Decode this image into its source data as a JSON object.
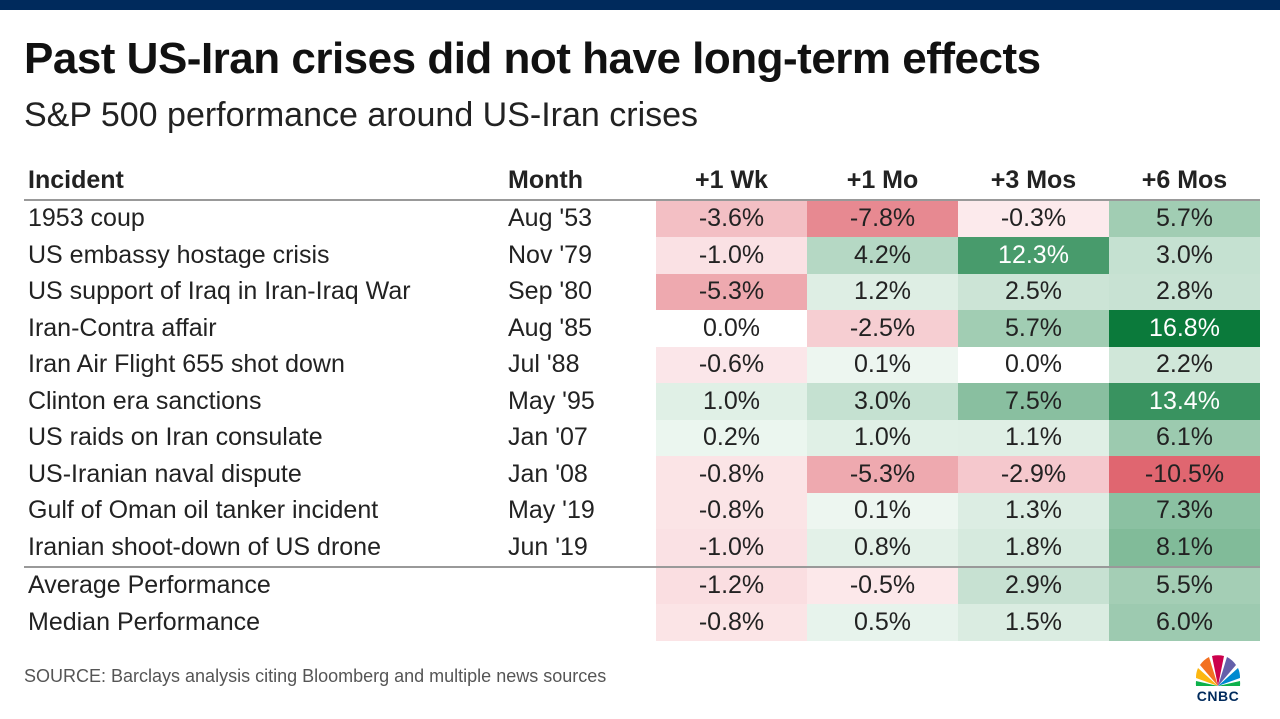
{
  "header": {
    "title": "Past US-Iran crises did not have long-term effects",
    "subtitle": "S&P 500 performance around US-Iran crises"
  },
  "chart_data": {
    "type": "table",
    "columns": [
      "Incident",
      "Month",
      "+1 Wk",
      "+1 Mo",
      "+3 Mos",
      "+6 Mos"
    ],
    "rows": [
      {
        "incident": "1953 coup",
        "month": "Aug '53",
        "values": [
          -3.6,
          -7.8,
          -0.3,
          5.7
        ],
        "labels": [
          "-3.6%",
          "-7.8%",
          "-0.3%",
          "5.7%"
        ]
      },
      {
        "incident": "US embassy hostage crisis",
        "month": "Nov '79",
        "values": [
          -1.0,
          4.2,
          12.3,
          3.0
        ],
        "labels": [
          "-1.0%",
          "4.2%",
          "12.3%",
          "3.0%"
        ]
      },
      {
        "incident": "US support of Iraq in Iran-Iraq War",
        "month": "Sep '80",
        "values": [
          -5.3,
          1.2,
          2.5,
          2.8
        ],
        "labels": [
          "-5.3%",
          "1.2%",
          "2.5%",
          "2.8%"
        ]
      },
      {
        "incident": "Iran-Contra affair",
        "month": "Aug '85",
        "values": [
          0.0,
          -2.5,
          5.7,
          16.8
        ],
        "labels": [
          "0.0%",
          "-2.5%",
          "5.7%",
          "16.8%"
        ]
      },
      {
        "incident": "Iran Air Flight 655 shot down",
        "month": "Jul '88",
        "values": [
          -0.6,
          0.1,
          0.0,
          2.2
        ],
        "labels": [
          "-0.6%",
          "0.1%",
          "0.0%",
          "2.2%"
        ]
      },
      {
        "incident": "Clinton era sanctions",
        "month": "May '95",
        "values": [
          1.0,
          3.0,
          7.5,
          13.4
        ],
        "labels": [
          "1.0%",
          "3.0%",
          "7.5%",
          "13.4%"
        ]
      },
      {
        "incident": "US raids on Iran consulate",
        "month": "Jan '07",
        "values": [
          0.2,
          1.0,
          1.1,
          6.1
        ],
        "labels": [
          "0.2%",
          "1.0%",
          "1.1%",
          "6.1%"
        ]
      },
      {
        "incident": "US-Iranian naval dispute",
        "month": "Jan '08",
        "values": [
          -0.8,
          -5.3,
          -2.9,
          -10.5
        ],
        "labels": [
          "-0.8%",
          "-5.3%",
          "-2.9%",
          "-10.5%"
        ]
      },
      {
        "incident": "Gulf of Oman oil tanker incident",
        "month": "May '19",
        "values": [
          -0.8,
          0.1,
          1.3,
          7.3
        ],
        "labels": [
          "-0.8%",
          "0.1%",
          "1.3%",
          "7.3%"
        ]
      },
      {
        "incident": "Iranian shoot-down of US drone",
        "month": "Jun '19",
        "values": [
          -1.0,
          0.8,
          1.8,
          8.1
        ],
        "labels": [
          "-1.0%",
          "0.8%",
          "1.8%",
          "8.1%"
        ]
      }
    ],
    "summary_rows": [
      {
        "incident": "Average Performance",
        "month": "",
        "values": [
          -1.2,
          -0.5,
          2.9,
          5.5
        ],
        "labels": [
          "-1.2%",
          "-0.5%",
          "2.9%",
          "5.5%"
        ]
      },
      {
        "incident": "Median Performance",
        "month": "",
        "values": [
          -0.8,
          0.5,
          1.5,
          6.0
        ],
        "labels": [
          "-0.8%",
          "0.5%",
          "1.5%",
          "6.0%"
        ]
      }
    ],
    "colors": {
      "positive_strong": "#0b7a3b",
      "positive_light": "#eef7f1",
      "negative_strong": "#e06670",
      "negative_light": "#fdeef0",
      "neutral": "#ffffff"
    }
  },
  "footer": {
    "source": "SOURCE: Barclays analysis citing Bloomberg and multiple news sources",
    "logo_text": "CNBC"
  }
}
